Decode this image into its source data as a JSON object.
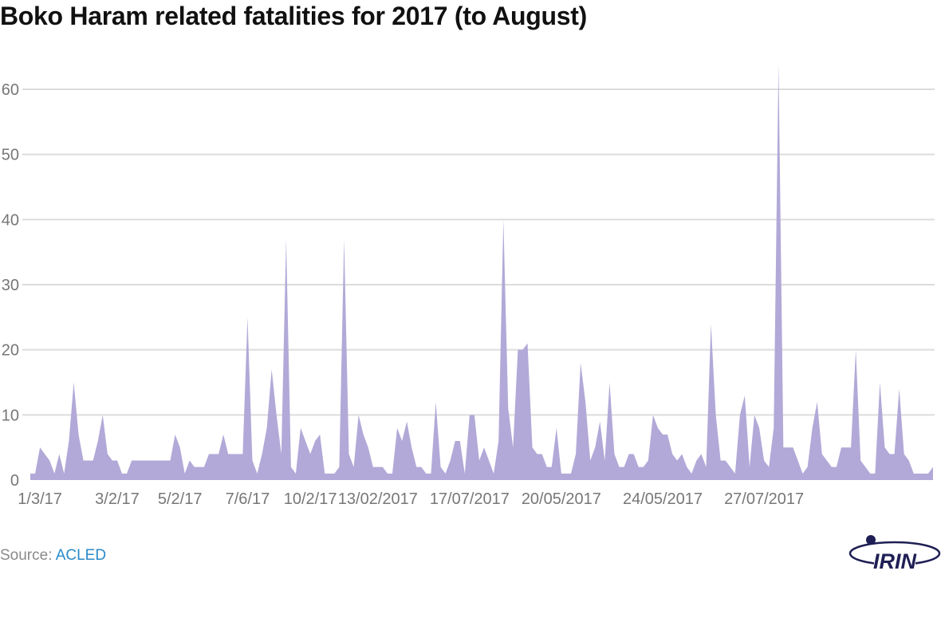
{
  "title": "Boko Haram related fatalities for 2017 (to August)",
  "source": {
    "label": "Source:",
    "link_text": "ACLED"
  },
  "logo": {
    "text": "IRIN"
  },
  "colors": {
    "area": "#b2a9d8",
    "grid": "#dcdcdc",
    "axis_text": "#777777",
    "link": "#2a8bc7",
    "logo": "#1f1f55"
  },
  "chart_data": {
    "type": "area",
    "title": "Boko Haram related fatalities for 2017 (to August)",
    "xlabel": "",
    "ylabel": "",
    "ylim": [
      0,
      64
    ],
    "grid": true,
    "y_ticks": [
      0,
      10,
      20,
      30,
      40,
      50,
      60
    ],
    "x_tick_labels": [
      "1/3/17",
      "3/2/17",
      "5/2/17",
      "7/6/17",
      "10/2/17",
      "13/02/2017",
      "17/07/2017",
      "20/05/2017",
      "24/05/2017",
      "27/07/2017"
    ],
    "x_tick_index": [
      2,
      18,
      31,
      45,
      58,
      72,
      91,
      110,
      131,
      152
    ],
    "series": [
      {
        "values": [
          1,
          1,
          5,
          4,
          3,
          1,
          4,
          1,
          6,
          15,
          7,
          3,
          3,
          3,
          6,
          10,
          4,
          3,
          3,
          1,
          1,
          3,
          3,
          3,
          3,
          3,
          3,
          3,
          3,
          3,
          7,
          5,
          1,
          3,
          2,
          2,
          2,
          4,
          4,
          4,
          7,
          4,
          4,
          4,
          4,
          25,
          3,
          1,
          4,
          8,
          17,
          10,
          4,
          37,
          2,
          1,
          8,
          6,
          4,
          6,
          7,
          1,
          1,
          1,
          2,
          37,
          4,
          2,
          10,
          7,
          5,
          2,
          2,
          2,
          1,
          1,
          8,
          6,
          9,
          5,
          2,
          2,
          1,
          1,
          12,
          2,
          1,
          3,
          6,
          6,
          1,
          10,
          10,
          3,
          5,
          3,
          1,
          6,
          40,
          11,
          5,
          20,
          20,
          21,
          5,
          4,
          4,
          2,
          2,
          8,
          1,
          1,
          1,
          4,
          18,
          12,
          3,
          5,
          9,
          3,
          15,
          4,
          2,
          2,
          4,
          4,
          2,
          2,
          3,
          10,
          8,
          7,
          7,
          4,
          3,
          4,
          2,
          1,
          3,
          4,
          2,
          24,
          10,
          3,
          3,
          2,
          1,
          10,
          13,
          2,
          10,
          8,
          3,
          2,
          8,
          64,
          5,
          5,
          5,
          3,
          1,
          2,
          8,
          12,
          4,
          3,
          2,
          2,
          5,
          5,
          5,
          20,
          3,
          2,
          1,
          1,
          15,
          5,
          4,
          4,
          14,
          4,
          3,
          1,
          1,
          1,
          1,
          2
        ]
      }
    ]
  }
}
